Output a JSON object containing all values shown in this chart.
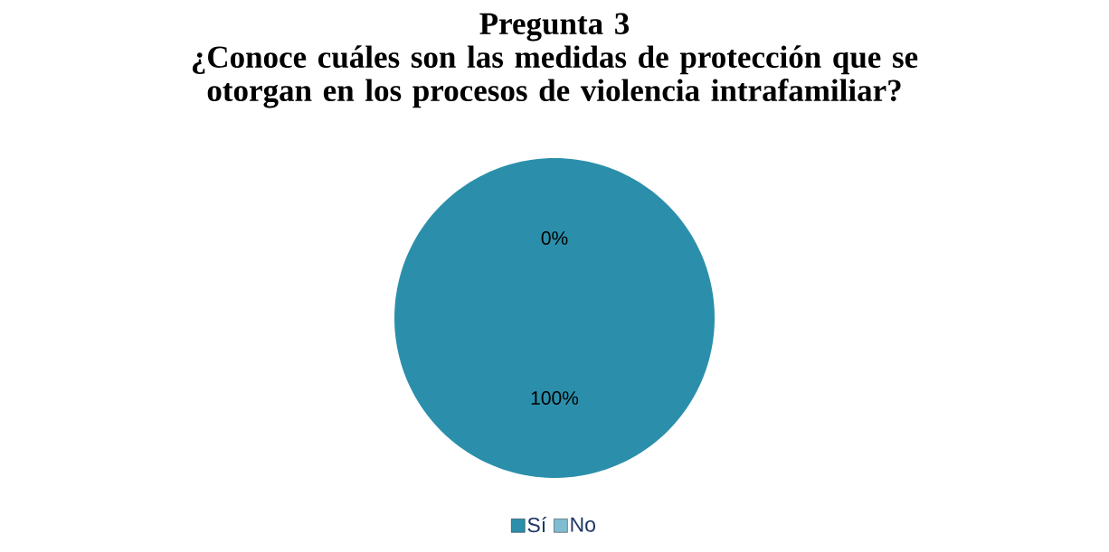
{
  "chart_data": {
    "type": "pie",
    "title": "Pregunta 3",
    "subtitle": "¿Conoce cuáles son las medidas de protección que se otorgan en los procesos de violencia intrafamiliar?",
    "categories": [
      "Sí",
      "No"
    ],
    "values": [
      100,
      0
    ],
    "colors": [
      "#2b8fab",
      "#7fbcd2"
    ],
    "value_labels": [
      "100%",
      "0%"
    ],
    "legend": "bottom"
  }
}
